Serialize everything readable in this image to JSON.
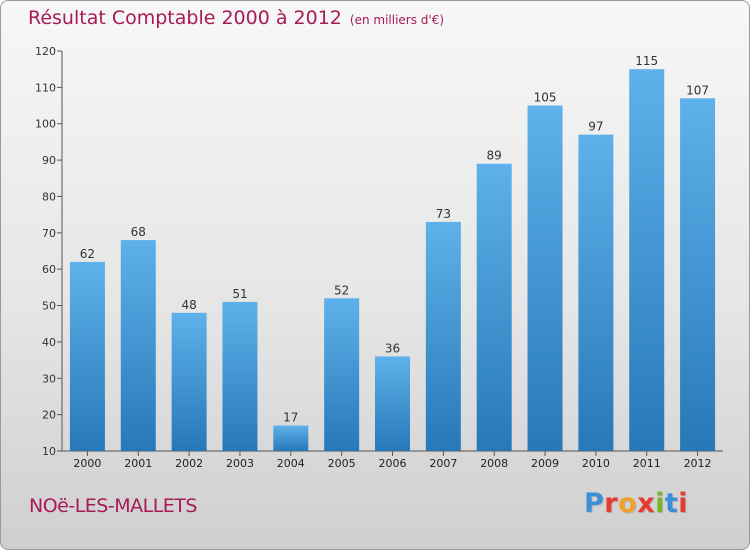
{
  "header": {
    "title": "Résultat Comptable 2000 à 2012",
    "subtitle": "(en milliers d'€)"
  },
  "footer": {
    "town": "NOë-LES-MALLETS",
    "logo_text": "Proxiti",
    "logo_colors": [
      "#3b8ed8",
      "#e63b2e",
      "#f0a02a",
      "#e63b2e",
      "#7ab42f",
      "#3b8ed8",
      "#e63b2e"
    ]
  },
  "chart_data": {
    "type": "bar",
    "categories": [
      "2000",
      "2001",
      "2002",
      "2003",
      "2004",
      "2005",
      "2006",
      "2007",
      "2008",
      "2009",
      "2010",
      "2011",
      "2012"
    ],
    "values": [
      62,
      68,
      48,
      51,
      17,
      52,
      36,
      73,
      89,
      105,
      97,
      115,
      107
    ],
    "ylim": [
      10,
      120
    ],
    "yticks": [
      10,
      20,
      30,
      40,
      50,
      60,
      70,
      80,
      90,
      100,
      110,
      120
    ],
    "grid": false,
    "data_labels": true,
    "bar_color_top": "#5eb1ea",
    "bar_color_bottom": "#2878b8",
    "title_color": "#a61b57"
  }
}
